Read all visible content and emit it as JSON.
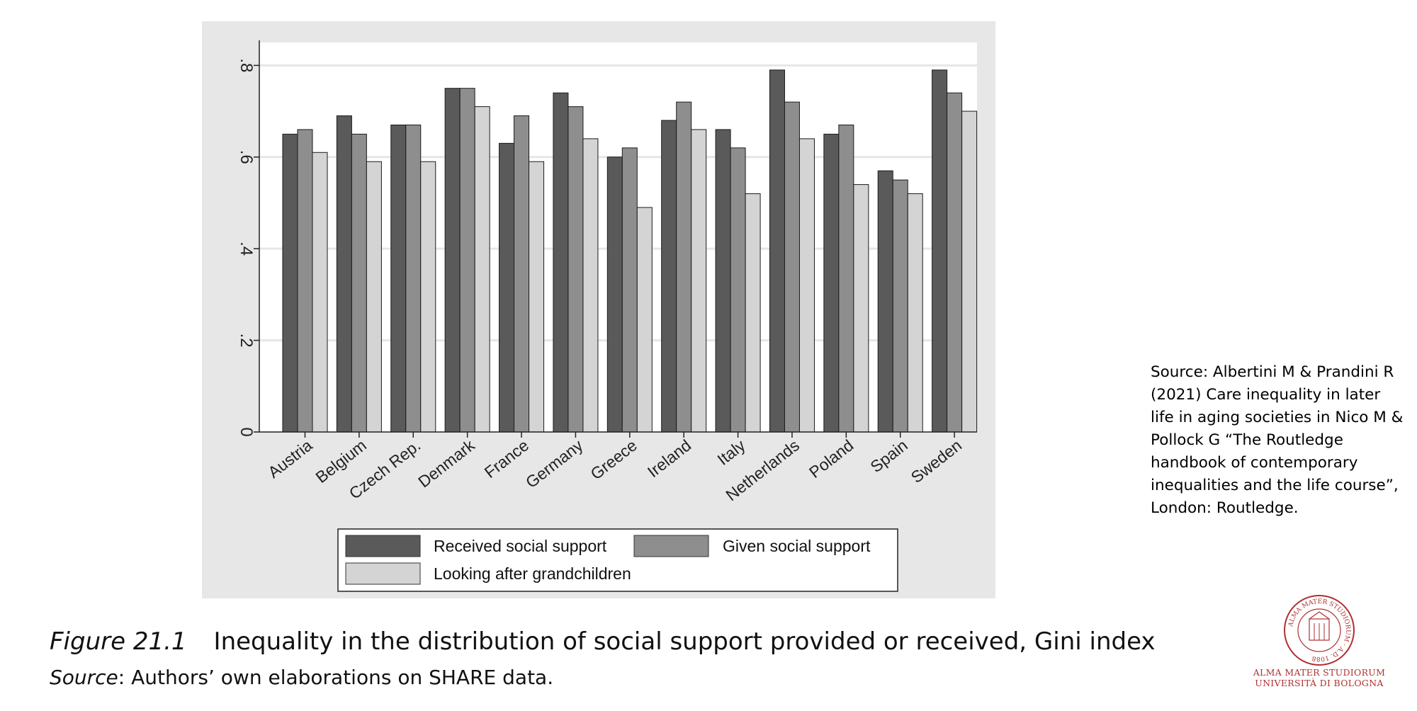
{
  "chart_data": {
    "type": "bar",
    "title": "",
    "xlabel": "",
    "ylabel": "",
    "ylim": [
      0,
      0.85
    ],
    "yticks": [
      0,
      0.2,
      0.4,
      0.6,
      0.8
    ],
    "ytick_labels": [
      "0",
      ".2",
      ".4",
      ".6",
      ".8"
    ],
    "grid": true,
    "legend_position": "bottom",
    "categories": [
      "Austria",
      "Belgium",
      "Czech Rep.",
      "Denmark",
      "France",
      "Germany",
      "Greece",
      "Ireland",
      "Italy",
      "Netherlands",
      "Poland",
      "Spain",
      "Sweden"
    ],
    "series": [
      {
        "name": "Received social support",
        "color": "#5a5a5a",
        "values": [
          0.65,
          0.69,
          0.67,
          0.75,
          0.63,
          0.74,
          0.6,
          0.68,
          0.66,
          0.79,
          0.65,
          0.57,
          0.79
        ]
      },
      {
        "name": "Given social support",
        "color": "#8e8e8e",
        "values": [
          0.66,
          0.65,
          0.67,
          0.75,
          0.69,
          0.71,
          0.62,
          0.72,
          0.62,
          0.72,
          0.67,
          0.55,
          0.74
        ]
      },
      {
        "name": "Looking after grandchildren",
        "color": "#d4d4d4",
        "values": [
          0.61,
          0.59,
          0.59,
          0.71,
          0.59,
          0.64,
          0.49,
          0.66,
          0.52,
          0.64,
          0.54,
          0.52,
          0.7
        ]
      }
    ]
  },
  "caption": {
    "figure_label": "Figure 21.1",
    "text": "Inequality in the distribution of social support provided or received, Gini index"
  },
  "source": {
    "label": "Source",
    "text": ": Authors’ own elaborations on SHARE data."
  },
  "side_note": "Source: Albertini M & Prandini R (2021) Care inequality in later life in aging societies in Nico M & Pollock G “The Routledge handbook of contemporary inequalities and the life course”, London: Routledge.",
  "logo": {
    "seal_text": "ALMA MATER STUDIORUM A.D. 1088",
    "line1": "ALMA MATER STUDIORUM",
    "line2": "UNIVERSITÀ DI BOLOGNA",
    "color": "#b03030"
  }
}
